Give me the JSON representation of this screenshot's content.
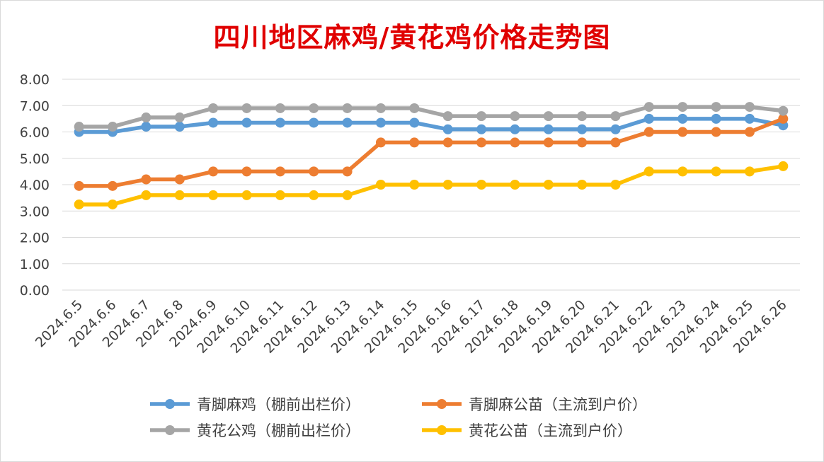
{
  "chart_data": {
    "type": "line",
    "title": "四川地区麻鸡/黄花鸡价格走势图",
    "x": [
      "2024.6.5",
      "2024.6.6",
      "2024.6.7",
      "2024.6.8",
      "2024.6.9",
      "2024.6.10",
      "2024.6.11",
      "2024.6.12",
      "2024.6.13",
      "2024.6.14",
      "2024.6.15",
      "2024.6.16",
      "2024.6.17",
      "2024.6.18",
      "2024.6.19",
      "2024.6.20",
      "2024.6.21",
      "2024.6.22",
      "2024.6.23",
      "2024.6.24",
      "2024.6.25",
      "2024.6.26"
    ],
    "ylim": [
      0,
      8
    ],
    "yticks": [
      "0.00",
      "1.00",
      "2.00",
      "3.00",
      "4.00",
      "5.00",
      "6.00",
      "7.00",
      "8.00"
    ],
    "grid": true,
    "legend_position": "bottom",
    "series": [
      {
        "name": "青脚麻鸡（棚前出栏价）",
        "color": "#5b9bd5",
        "values": [
          6.0,
          6.0,
          6.2,
          6.2,
          6.35,
          6.35,
          6.35,
          6.35,
          6.35,
          6.35,
          6.35,
          6.1,
          6.1,
          6.1,
          6.1,
          6.1,
          6.1,
          6.5,
          6.5,
          6.5,
          6.5,
          6.25
        ]
      },
      {
        "name": "青脚麻公苗（主流到户价）",
        "color": "#ed7d31",
        "values": [
          3.95,
          3.95,
          4.2,
          4.2,
          4.5,
          4.5,
          4.5,
          4.5,
          4.5,
          5.6,
          5.6,
          5.6,
          5.6,
          5.6,
          5.6,
          5.6,
          5.6,
          6.0,
          6.0,
          6.0,
          6.0,
          6.5
        ]
      },
      {
        "name": "黄花公鸡（棚前出栏价）",
        "color": "#a5a5a5",
        "values": [
          6.2,
          6.2,
          6.55,
          6.55,
          6.9,
          6.9,
          6.9,
          6.9,
          6.9,
          6.9,
          6.9,
          6.6,
          6.6,
          6.6,
          6.6,
          6.6,
          6.6,
          6.95,
          6.95,
          6.95,
          6.95,
          6.8
        ]
      },
      {
        "name": "黄花公苗（主流到户价）",
        "color": "#ffc000",
        "values": [
          3.25,
          3.25,
          3.6,
          3.6,
          3.6,
          3.6,
          3.6,
          3.6,
          3.6,
          4.0,
          4.0,
          4.0,
          4.0,
          4.0,
          4.0,
          4.0,
          4.0,
          4.5,
          4.5,
          4.5,
          4.5,
          4.7
        ]
      }
    ]
  }
}
